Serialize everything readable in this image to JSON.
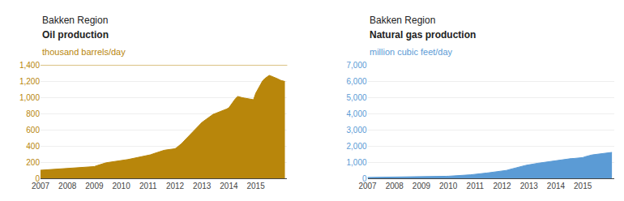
{
  "chart_data": [
    {
      "type": "area",
      "title": "Bakken Region",
      "subtitle": "Oil production",
      "ylabel": "thousand barrels/day",
      "x": [
        2007.0,
        2007.083,
        2007.167,
        2007.25,
        2007.333,
        2007.417,
        2007.5,
        2007.583,
        2007.667,
        2007.75,
        2007.833,
        2007.917,
        2008.0,
        2008.083,
        2008.167,
        2008.25,
        2008.333,
        2008.417,
        2008.5,
        2008.583,
        2008.667,
        2008.75,
        2008.833,
        2008.917,
        2009.0,
        2009.083,
        2009.167,
        2009.25,
        2009.333,
        2009.417,
        2009.5,
        2009.583,
        2009.667,
        2009.75,
        2009.833,
        2009.917,
        2010.0,
        2010.083,
        2010.167,
        2010.25,
        2010.333,
        2010.417,
        2010.5,
        2010.583,
        2010.667,
        2010.75,
        2010.833,
        2010.917,
        2011.0,
        2011.083,
        2011.167,
        2011.25,
        2011.333,
        2011.417,
        2011.5,
        2011.583,
        2011.667,
        2011.75,
        2011.833,
        2011.917,
        2012.0,
        2012.083,
        2012.167,
        2012.25,
        2012.333,
        2012.417,
        2012.5,
        2012.583,
        2012.667,
        2012.75,
        2012.833,
        2012.917,
        2013.0,
        2013.083,
        2013.167,
        2013.25,
        2013.333,
        2013.417,
        2013.5,
        2013.583,
        2013.667,
        2013.75,
        2013.833,
        2013.917,
        2014.0,
        2014.083,
        2014.167,
        2014.25,
        2014.333,
        2014.417,
        2014.5,
        2014.583,
        2014.667,
        2014.75,
        2014.833,
        2014.917,
        2015.0,
        2015.083,
        2015.167,
        2015.25,
        2015.333,
        2015.417,
        2015.5,
        2015.583,
        2015.667,
        2015.75,
        2015.833,
        2015.917,
        2016.0,
        2016.083
      ],
      "values": [
        100,
        102,
        105,
        108,
        110,
        112,
        115,
        115,
        116,
        118,
        118,
        120,
        122,
        123,
        125,
        130,
        132,
        133,
        135,
        137,
        138,
        140,
        142,
        143,
        145,
        155,
        165,
        175,
        185,
        190,
        195,
        200,
        205,
        210,
        215,
        220,
        222,
        225,
        228,
        232,
        238,
        245,
        250,
        255,
        260,
        268,
        272,
        275,
        280,
        290,
        300,
        310,
        320,
        330,
        340,
        345,
        350,
        355,
        358,
        360,
        365,
        385,
        405,
        430,
        460,
        490,
        510,
        540,
        570,
        600,
        630,
        660,
        690,
        710,
        730,
        750,
        770,
        790,
        800,
        810,
        820,
        830,
        840,
        855,
        870,
        910,
        950,
        985,
        1010,
        1000,
        995,
        990,
        985,
        980,
        975,
        970,
        1050,
        1100,
        1150,
        1200,
        1230,
        1250,
        1270,
        1260,
        1250,
        1240,
        1225,
        1210,
        1200,
        1195
      ],
      "color": "#b8860b",
      "reference_line": {
        "y": 1400
      },
      "xlim": [
        2007.0,
        2016.17
      ],
      "xticks": [
        2007,
        2008,
        2009,
        2010,
        2011,
        2012,
        2013,
        2014,
        2015
      ],
      "ylim": [
        0,
        1400
      ],
      "yticks": [
        0,
        200,
        400,
        600,
        800,
        {
          "value": 1000,
          "label": "1,000"
        },
        {
          "value": 1200,
          "label": "1,200"
        },
        {
          "value": 1400,
          "label": "1,400"
        }
      ],
      "grid": true
    },
    {
      "type": "area",
      "title": "Bakken Region",
      "subtitle": "Natural gas production",
      "ylabel": "million cubic feet/day",
      "x": [
        2007.0,
        2007.083,
        2007.167,
        2007.25,
        2007.333,
        2007.417,
        2007.5,
        2007.583,
        2007.667,
        2007.75,
        2007.833,
        2007.917,
        2008.0,
        2008.083,
        2008.167,
        2008.25,
        2008.333,
        2008.417,
        2008.5,
        2008.583,
        2008.667,
        2008.75,
        2008.833,
        2008.917,
        2009.0,
        2009.083,
        2009.167,
        2009.25,
        2009.333,
        2009.417,
        2009.5,
        2009.583,
        2009.667,
        2009.75,
        2009.833,
        2009.917,
        2010.0,
        2010.083,
        2010.167,
        2010.25,
        2010.333,
        2010.417,
        2010.5,
        2010.583,
        2010.667,
        2010.75,
        2010.833,
        2010.917,
        2011.0,
        2011.083,
        2011.167,
        2011.25,
        2011.333,
        2011.417,
        2011.5,
        2011.583,
        2011.667,
        2011.75,
        2011.833,
        2011.917,
        2012.0,
        2012.083,
        2012.167,
        2012.25,
        2012.333,
        2012.417,
        2012.5,
        2012.583,
        2012.667,
        2012.75,
        2012.833,
        2012.917,
        2013.0,
        2013.083,
        2013.167,
        2013.25,
        2013.333,
        2013.417,
        2013.5,
        2013.583,
        2013.667,
        2013.75,
        2013.833,
        2013.917,
        2014.0,
        2014.083,
        2014.167,
        2014.25,
        2014.333,
        2014.417,
        2014.5,
        2014.583,
        2014.667,
        2014.75,
        2014.833,
        2014.917,
        2015.0,
        2015.083,
        2015.167,
        2015.25,
        2015.333,
        2015.417,
        2015.5,
        2015.583,
        2015.667,
        2015.75,
        2015.833,
        2015.917,
        2016.0,
        2016.083
      ],
      "values": [
        55,
        56,
        57,
        58,
        59,
        60,
        61,
        62,
        63,
        64,
        65,
        66,
        68,
        70,
        72,
        74,
        76,
        78,
        80,
        82,
        84,
        86,
        88,
        90,
        92,
        95,
        98,
        100,
        103,
        106,
        110,
        113,
        116,
        120,
        123,
        126,
        130,
        135,
        140,
        148,
        158,
        168,
        178,
        188,
        198,
        208,
        218,
        228,
        238,
        255,
        272,
        290,
        308,
        325,
        342,
        360,
        378,
        390,
        400,
        410,
        420,
        450,
        490,
        530,
        570,
        610,
        650,
        690,
        720,
        750,
        780,
        810,
        840,
        870,
        890,
        910,
        930,
        950,
        970,
        990,
        1010,
        1030,
        1050,
        1060,
        1070,
        1100,
        1130,
        1160,
        1185,
        1200,
        1215,
        1220,
        1225,
        1230,
        1240,
        1250,
        1280,
        1330,
        1380,
        1410,
        1440,
        1460,
        1480,
        1500,
        1520,
        1540,
        1560,
        1575,
        1590,
        1600
      ],
      "color": "#5b9bd5",
      "xlim": [
        2007.0,
        2016.17
      ],
      "xticks": [
        2007,
        2008,
        2009,
        2010,
        2011,
        2012,
        2013,
        2014,
        2015
      ],
      "ylim": [
        0,
        7000
      ],
      "yticks": [
        0,
        {
          "value": 1000,
          "label": "1,000"
        },
        {
          "value": 2000,
          "label": "2,000"
        },
        {
          "value": 3000,
          "label": "3,000"
        },
        {
          "value": 4000,
          "label": "4,000"
        },
        {
          "value": 5000,
          "label": "5,000"
        },
        {
          "value": 6000,
          "label": "6,000"
        },
        {
          "value": 7000,
          "label": "7,000"
        }
      ],
      "grid": true
    }
  ]
}
